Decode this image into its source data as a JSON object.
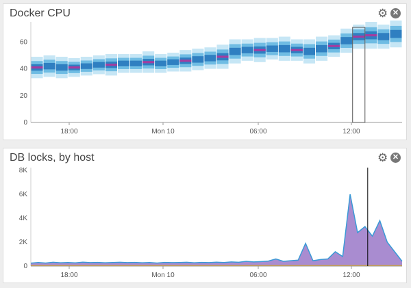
{
  "widgets": [
    {
      "title": "Docker CPU",
      "gear_icon": "gear-icon",
      "close_icon": "close-icon"
    },
    {
      "title": "DB locks, by host",
      "gear_icon": "gear-icon",
      "close_icon": "close-icon"
    }
  ],
  "colors": {
    "heat_light": "#c6e6f5",
    "heat_mid": "#6fbce3",
    "heat_dark": "#2f7fc1",
    "heat_peak": "#a43c9f",
    "area_line": "#3a9ad6",
    "area_fill": "#9a78c8",
    "area_base": "#c9a34a"
  },
  "chart_data": [
    {
      "type": "heatmap",
      "title": "Docker CPU",
      "xlabel": "",
      "ylabel": "",
      "x_ticks": [
        "18:00",
        "Mon 10",
        "06:00",
        "12:00"
      ],
      "y_ticks": [
        "0",
        "20",
        "40",
        "60"
      ],
      "ylim": [
        0,
        75
      ],
      "grid": false,
      "series": [
        {
          "x": [
            0,
            1,
            2,
            3,
            4,
            5,
            6,
            7,
            8,
            9,
            10,
            11,
            12,
            13,
            14,
            15,
            16,
            17,
            18,
            19,
            20,
            21,
            22,
            23,
            24,
            25,
            26,
            27,
            28,
            29
          ],
          "median": [
            41,
            42,
            41,
            41,
            42,
            43,
            43,
            44,
            44,
            45,
            44,
            45,
            46,
            47,
            48,
            49,
            53,
            54,
            54,
            55,
            55,
            54,
            53,
            55,
            57,
            61,
            64,
            65,
            64,
            66
          ],
          "spread": [
            8,
            8,
            8,
            7,
            7,
            7,
            8,
            7,
            7,
            8,
            7,
            7,
            8,
            8,
            8,
            9,
            9,
            8,
            9,
            8,
            9,
            8,
            9,
            9,
            8,
            9,
            9,
            10,
            9,
            10
          ]
        }
      ],
      "highlight": {
        "x_index": 26
      }
    },
    {
      "type": "area",
      "title": "DB locks, by host",
      "xlabel": "",
      "ylabel": "",
      "x_ticks": [
        "18:00",
        "Mon 10",
        "06:00",
        "12:00"
      ],
      "y_ticks": [
        "0",
        "2K",
        "4K",
        "6K",
        "8K"
      ],
      "ylim": [
        0,
        8000
      ],
      "grid": false,
      "series": [
        {
          "x": [
            0,
            2,
            4,
            6,
            8,
            10,
            12,
            14,
            16,
            18,
            20,
            22,
            24,
            26,
            28,
            30,
            32,
            34,
            36,
            38,
            40,
            42,
            44,
            46,
            48,
            50,
            52,
            54,
            56,
            58,
            60,
            62,
            64,
            66,
            68,
            70,
            72,
            74,
            76,
            78,
            80,
            82,
            84,
            86,
            88,
            90,
            92,
            94,
            96,
            98,
            100
          ],
          "values": [
            250,
            300,
            260,
            320,
            280,
            300,
            270,
            330,
            290,
            310,
            280,
            300,
            320,
            290,
            310,
            280,
            300,
            260,
            310,
            290,
            300,
            320,
            280,
            310,
            290,
            330,
            300,
            350,
            320,
            400,
            350,
            380,
            420,
            600,
            400,
            450,
            500,
            1900,
            450,
            550,
            600,
            1200,
            800,
            6000,
            2800,
            3300,
            2500,
            3800,
            2000,
            1200,
            400
          ]
        }
      ],
      "highlight": {
        "x_index": 45
      }
    }
  ]
}
